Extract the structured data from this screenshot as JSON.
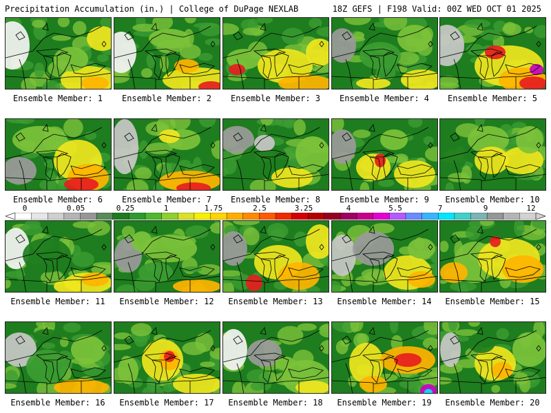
{
  "header": {
    "left_title": "Precipitation Accumulation (in.) | College of DuPage NEXLAB",
    "right_title": "18Z GEFS | F198 Valid: 00Z WED OCT 01 2025"
  },
  "panels": [
    {
      "caption": "Ensemble Member: 1"
    },
    {
      "caption": "Ensemble Member: 2"
    },
    {
      "caption": "Ensemble Member: 3"
    },
    {
      "caption": "Ensemble Member: 4"
    },
    {
      "caption": "Ensemble Member: 5"
    },
    {
      "caption": "Ensemble Member: 6"
    },
    {
      "caption": "Ensemble Member: 7"
    },
    {
      "caption": "Ensemble Member: 8"
    },
    {
      "caption": "Ensemble Member: 9"
    },
    {
      "caption": "Ensemble Member: 10"
    },
    {
      "caption": "Ensemble Member: 11"
    },
    {
      "caption": "Ensemble Member: 12"
    },
    {
      "caption": "Ensemble Member: 13"
    },
    {
      "caption": "Ensemble Member: 14"
    },
    {
      "caption": "Ensemble Member: 15"
    },
    {
      "caption": "Ensemble Member: 16"
    },
    {
      "caption": "Ensemble Member: 17"
    },
    {
      "caption": "Ensemble Member: 18"
    },
    {
      "caption": "Ensemble Member: 19"
    },
    {
      "caption": "Ensemble Member: 20"
    }
  ],
  "colorbar": {
    "labels": [
      "0",
      "0.05",
      "0.25",
      "1",
      "1.75",
      "2.5",
      "3.25",
      "4",
      "5.5",
      "7",
      "9",
      "12"
    ],
    "colors": [
      "#ffffff",
      "#e6e6e6",
      "#cfcfcf",
      "#b4b4b4",
      "#969696",
      "#5a8a5a",
      "#1f7a1f",
      "#2e9a2e",
      "#4fb82f",
      "#8fcf2f",
      "#d8e22a",
      "#f5f000",
      "#ffd400",
      "#ffae00",
      "#ff8a00",
      "#ff5a00",
      "#f02a00",
      "#d40000",
      "#b40000",
      "#960020",
      "#a00060",
      "#c8008c",
      "#e400d0",
      "#b45aff",
      "#6a8cff",
      "#38b4ff",
      "#00e6ff",
      "#40d0c8",
      "#7ab4b4",
      "#969696",
      "#b4b4b4",
      "#d2d2d2"
    ]
  },
  "map_colors": {
    "white": "#f4f4f4",
    "light_gray": "#c8c8c8",
    "gray": "#9a9a9a",
    "dark_green": "#1e7d1e",
    "green": "#3c9c32",
    "light_green": "#7cc23a",
    "yellow": "#f0e61e",
    "orange": "#ffb400",
    "dark_orange": "#ff7800",
    "red": "#e61e1e",
    "dark_red": "#a00000",
    "magenta": "#c800c8",
    "cyan": "#00e6ff"
  }
}
